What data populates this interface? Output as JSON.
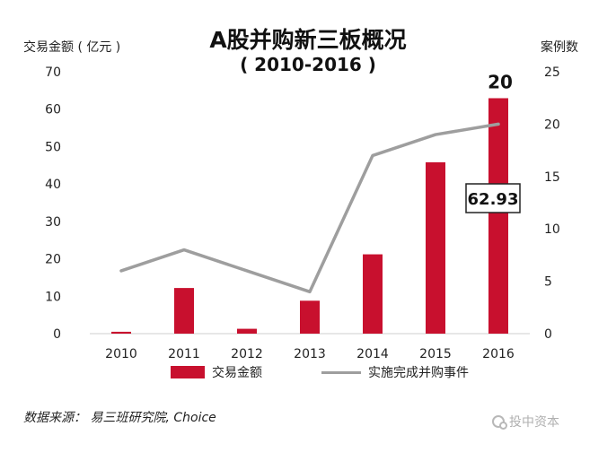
{
  "chart_data": {
    "type": "bar+line",
    "title": "A股并购新三板概况",
    "subtitle": "( 2010-2016 )",
    "ylabel_left": "交易金额 ( 亿元 )",
    "ylabel_right": "案例数",
    "categories": [
      "2010",
      "2011",
      "2012",
      "2013",
      "2014",
      "2015",
      "2016"
    ],
    "ylim_left": [
      0,
      70
    ],
    "yticks_left": [
      0,
      10,
      20,
      30,
      40,
      50,
      60,
      70
    ],
    "ylim_right": [
      0,
      25
    ],
    "yticks_right": [
      0,
      5,
      10,
      15,
      20,
      25
    ],
    "series": [
      {
        "name": "交易金额",
        "type": "bar",
        "axis": "left",
        "color": "#c8102e",
        "values": [
          0.5,
          12.2,
          1.3,
          8.8,
          21.2,
          45.8,
          62.93
        ]
      },
      {
        "name": "实施完成并购事件",
        "type": "line",
        "axis": "right",
        "color": "#9e9e9e",
        "values": [
          6,
          8,
          6,
          4,
          17,
          19,
          20
        ]
      }
    ],
    "annotations": [
      {
        "text": "20",
        "category": "2016",
        "series": "实施完成并购事件"
      },
      {
        "text": "62.93",
        "category": "2016",
        "series": "交易金额",
        "boxed": true
      }
    ],
    "grid": false,
    "legend_position": "bottom"
  },
  "legend": {
    "bar_label": "交易金额",
    "line_label": "实施完成并购事件"
  },
  "source_text": "数据来源： 易三班研究院, Choice",
  "watermark_text": "投中资本"
}
